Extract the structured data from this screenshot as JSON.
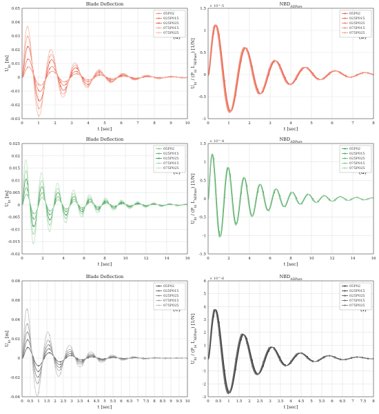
{
  "chart_data": [
    {
      "id": "a",
      "type": "line",
      "title": "Blade Deflection",
      "panel_label": "(a)",
      "xlabel": "t [sec]",
      "ylabel": "U_{ht} [m]",
      "xlim": [
        0,
        10
      ],
      "ylim": [
        -0.03,
        0.05
      ],
      "xticks": [
        "0",
        "1",
        "2",
        "3",
        "4",
        "5",
        "6",
        "7",
        "8",
        "9",
        "10"
      ],
      "yticks": [
        "-0.03",
        "-0.02",
        "-0.01",
        "0",
        "0.01",
        "0.02",
        "0.03",
        "0.04",
        "0.05"
      ],
      "legend": "top-right",
      "grid": true,
      "series_colors": [
        "#f08a76",
        "#ea6f5a",
        "#e85a46",
        "#f4a090",
        "#f7b8aa"
      ],
      "series": [
        {
          "name": "05P02",
          "amp": 0.009,
          "period": 1.45,
          "tau": 2.6
        },
        {
          "name": "025P015",
          "amp": 0.016,
          "period": 1.45,
          "tau": 2.5
        },
        {
          "name": "025P025",
          "amp": 0.027,
          "period": 1.45,
          "tau": 2.4
        },
        {
          "name": "075P015",
          "amp": 0.036,
          "period": 1.45,
          "tau": 2.3
        },
        {
          "name": "075P025",
          "amp": 0.045,
          "period": 1.45,
          "tau": 2.2
        }
      ]
    },
    {
      "id": "b",
      "type": "line",
      "title": "NBD_{ADPare}",
      "panel_label": "(b)",
      "xlabel": "t [sec]",
      "ylabel": "U_{ht} / (P_{bl} L_{ADPare}) [1/N]",
      "exponent": "× 10^-5",
      "xlim": [
        0,
        8
      ],
      "ylim": [
        -1,
        1.5
      ],
      "xticks": [
        "0",
        "1",
        "2",
        "3",
        "4",
        "5",
        "6",
        "7",
        "8"
      ],
      "yticks": [
        "-1",
        "-0.5",
        "0",
        "0.5",
        "1",
        "1.5"
      ],
      "legend": "top-right",
      "grid": true,
      "series_colors": [
        "#e8604a",
        "#ea6a55",
        "#ed7a66",
        "#f08a76",
        "#f49a88"
      ],
      "series": [
        {
          "name": "05P02",
          "amp": 1.38,
          "period": 1.45,
          "tau": 2.2
        },
        {
          "name": "025P015",
          "amp": 1.38,
          "period": 1.45,
          "tau": 2.2
        },
        {
          "name": "025P025",
          "amp": 1.38,
          "period": 1.45,
          "tau": 2.2
        },
        {
          "name": "075P015",
          "amp": 1.38,
          "period": 1.45,
          "tau": 2.2
        },
        {
          "name": "075P025",
          "amp": 1.38,
          "period": 1.45,
          "tau": 2.2
        }
      ]
    },
    {
      "id": "c",
      "type": "line",
      "title": "Blade Deflection",
      "panel_label": "(c)",
      "xlabel": "t [sec]",
      "ylabel": "U_{ht} [m]",
      "xlim": [
        0,
        16
      ],
      "ylim": [
        -0.02,
        0.025
      ],
      "xticks": [
        "0",
        "2",
        "4",
        "6",
        "8",
        "10",
        "12",
        "14",
        "16"
      ],
      "yticks": [
        "-0.02",
        "-0.015",
        "-0.01",
        "-0.005",
        "0",
        "0.005",
        "0.01",
        "0.015",
        "0.02",
        "0.025"
      ],
      "legend": "top-right",
      "grid": true,
      "series_colors": [
        "#7fc48a",
        "#5fb06c",
        "#3f9a52",
        "#9fd4a8",
        "#bfe3c4"
      ],
      "series": [
        {
          "name": "05P02",
          "amp": 0.005,
          "period": 1.55,
          "tau": 4.0
        },
        {
          "name": "025P015",
          "amp": 0.008,
          "period": 1.55,
          "tau": 4.0
        },
        {
          "name": "025P025",
          "amp": 0.012,
          "period": 1.55,
          "tau": 4.0
        },
        {
          "name": "075P015",
          "amp": 0.016,
          "period": 1.55,
          "tau": 4.0
        },
        {
          "name": "075P025",
          "amp": 0.021,
          "period": 1.55,
          "tau": 4.0
        }
      ]
    },
    {
      "id": "d",
      "type": "line",
      "title": "NBD_{ADPare}",
      "panel_label": "(d)",
      "xlabel": "t [sec]",
      "ylabel": "U_{ht} / (P_{bl} L_{ADPare}) [1/N]",
      "exponent": "× 10^-4",
      "xlim": [
        0,
        16
      ],
      "ylim": [
        -1.5,
        1.5
      ],
      "xticks": [
        "0",
        "2",
        "4",
        "6",
        "8",
        "10",
        "12",
        "14",
        "16"
      ],
      "yticks": [
        "-1.5",
        "-1",
        "-0.5",
        "0",
        "0.5",
        "1",
        "1.5"
      ],
      "legend": "top-right",
      "grid": true,
      "series_colors": [
        "#3f9a52",
        "#4fa860",
        "#5fb06c",
        "#7fc48a",
        "#9fd4a8"
      ],
      "series": [
        {
          "name": "05P02",
          "amp": 1.38,
          "period": 1.55,
          "tau": 4.0
        },
        {
          "name": "025P015",
          "amp": 1.38,
          "period": 1.55,
          "tau": 4.0
        },
        {
          "name": "025P025",
          "amp": 1.38,
          "period": 1.55,
          "tau": 4.0
        },
        {
          "name": "075P015",
          "amp": 1.38,
          "period": 1.55,
          "tau": 4.0
        },
        {
          "name": "075P025",
          "amp": 1.38,
          "period": 1.55,
          "tau": 4.0
        }
      ]
    },
    {
      "id": "e",
      "type": "line",
      "title": "Blade Deflection",
      "panel_label": "(e)",
      "xlabel": "t [sec]",
      "ylabel": "U_{ht} [m]",
      "xlim": [
        0,
        10
      ],
      "ylim": [
        -0.04,
        0.08
      ],
      "xticks": [
        "0",
        "0.5",
        "1",
        "1.5",
        "2",
        "2.5",
        "3",
        "3.5",
        "4",
        "4.5",
        "5",
        "5.5",
        "6",
        "6.5",
        "7",
        "7.5",
        "8",
        "8.5",
        "9",
        "9.5",
        "10"
      ],
      "yticks": [
        "-0.04",
        "-0.02",
        "0",
        "0.02",
        "0.04",
        "0.06",
        "0.08"
      ],
      "legend": "top-right",
      "grid": true,
      "series_colors": [
        "#555555",
        "#707070",
        "#8a8a8a",
        "#a5a5a5",
        "#bfbfbf"
      ],
      "series": [
        {
          "name": "05P02",
          "amp": 0.014,
          "period": 1.3,
          "tau": 1.8
        },
        {
          "name": "025P015",
          "amp": 0.024,
          "period": 1.3,
          "tau": 1.8
        },
        {
          "name": "025P025",
          "amp": 0.034,
          "period": 1.3,
          "tau": 1.8
        },
        {
          "name": "075P015",
          "amp": 0.045,
          "period": 1.3,
          "tau": 1.8
        },
        {
          "name": "075P025",
          "amp": 0.065,
          "period": 1.3,
          "tau": 1.8
        }
      ]
    },
    {
      "id": "f",
      "type": "line",
      "title": "NBD_{ADPare}",
      "panel_label": "(f)",
      "xlabel": "t [sec]",
      "ylabel": "U_{ht} / (P_{bl} L_{ADPare}) [1/N]",
      "exponent": "× 10^-6",
      "xlim": [
        0,
        8
      ],
      "ylim": [
        -3,
        6
      ],
      "xticks": [
        "0",
        "0.5",
        "1",
        "1.5",
        "2",
        "2.5",
        "3",
        "3.5",
        "4",
        "4.5",
        "5",
        "5.5",
        "6",
        "6.5",
        "7",
        "7.5",
        "8"
      ],
      "yticks": [
        "-3",
        "-2",
        "-1",
        "0",
        "1",
        "2",
        "3",
        "4",
        "5",
        "6"
      ],
      "legend": "top-right",
      "grid": true,
      "series_colors": [
        "#333333",
        "#444444",
        "#555555",
        "#666666",
        "#777777"
      ],
      "series": [
        {
          "name": "05P02",
          "amp": 4.8,
          "period": 1.38,
          "tau": 1.8
        },
        {
          "name": "025P015",
          "amp": 4.8,
          "period": 1.38,
          "tau": 1.8
        },
        {
          "name": "025P025",
          "amp": 4.8,
          "period": 1.38,
          "tau": 1.8
        },
        {
          "name": "075P015",
          "amp": 4.8,
          "period": 1.38,
          "tau": 1.8
        },
        {
          "name": "075P025",
          "amp": 4.8,
          "period": 1.38,
          "tau": 1.8
        }
      ]
    }
  ]
}
